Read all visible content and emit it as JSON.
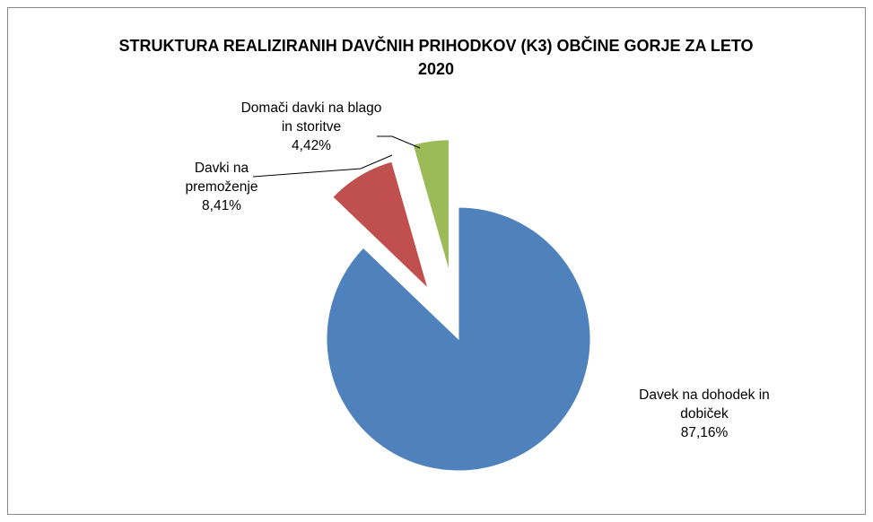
{
  "chart_data": {
    "type": "pie",
    "title": "STRUKTURA REALIZIRANIH DAVČNIH PRIHODKOV (K3) OBČINE GORJE ZA LETO 2020",
    "categories": [
      "Davek na dohodek in dobiček",
      "Davki na premoženje",
      "Domači davki na blago in storitve"
    ],
    "values": [
      87.16,
      8.41,
      4.42
    ],
    "value_labels": [
      "87,16%",
      "8,41%",
      "4,42%"
    ],
    "colors": [
      "#4f81bd",
      "#c0504d",
      "#9bbb59"
    ]
  }
}
